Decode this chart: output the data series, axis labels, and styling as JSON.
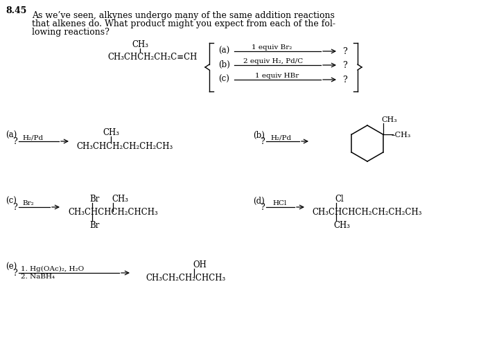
{
  "background_color": "#ffffff",
  "fig_width": 7.2,
  "fig_height": 4.89,
  "dpi": 100,
  "problem_number": "8.45",
  "intro_text": [
    "As we’ve seen, alkynes undergo many of the same addition reactions",
    "that alkenes do. What product might you expect from each of the fol-",
    "lowing reactions?"
  ]
}
